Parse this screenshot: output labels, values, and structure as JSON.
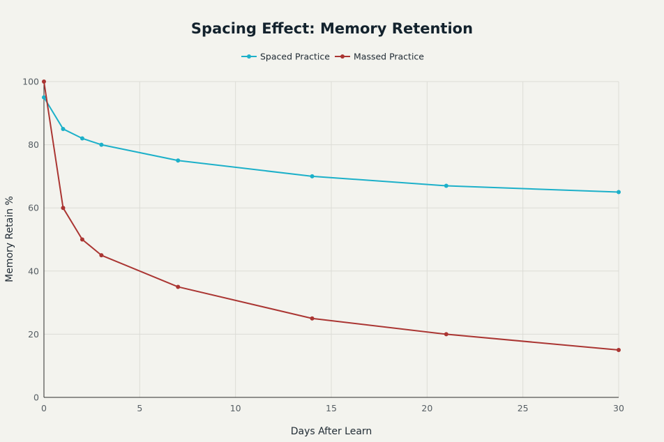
{
  "chart_data": {
    "type": "line",
    "title": "Spacing Effect: Memory Retention",
    "xlabel": "Days After Learn",
    "ylabel": "Memory Retain %",
    "xlim": [
      0,
      30
    ],
    "ylim": [
      0,
      100
    ],
    "x_ticks": [
      0,
      5,
      10,
      15,
      20,
      25,
      30
    ],
    "y_ticks": [
      0,
      20,
      40,
      60,
      80,
      100
    ],
    "x_tick_labels": [
      "0",
      "5",
      "10",
      "15",
      "20",
      "25",
      "30"
    ],
    "y_tick_labels": [
      "0",
      "20",
      "40",
      "60",
      "80",
      "100"
    ],
    "grid": true,
    "legend_position": "top-center",
    "x": [
      0,
      1,
      2,
      3,
      7,
      14,
      21,
      30
    ],
    "series": [
      {
        "name": "Spaced Practice",
        "color": "#1cb0c9",
        "values": [
          95,
          85,
          82,
          80,
          75,
          70,
          67,
          65
        ]
      },
      {
        "name": "Massed Practice",
        "color": "#aa3532",
        "values": [
          100,
          60,
          50,
          45,
          35,
          25,
          20,
          15
        ]
      }
    ]
  }
}
